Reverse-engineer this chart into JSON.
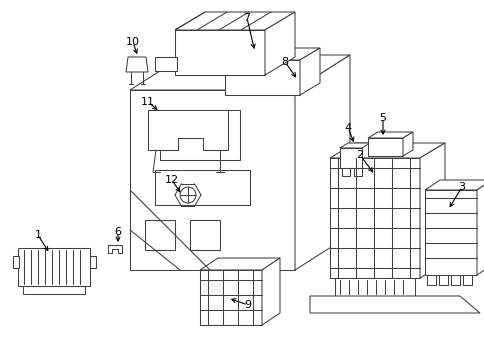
{
  "bg_color": "#ffffff",
  "line_color": "#404040",
  "label_color": "#000000",
  "lw": 0.75,
  "fontsize": 7.5
}
